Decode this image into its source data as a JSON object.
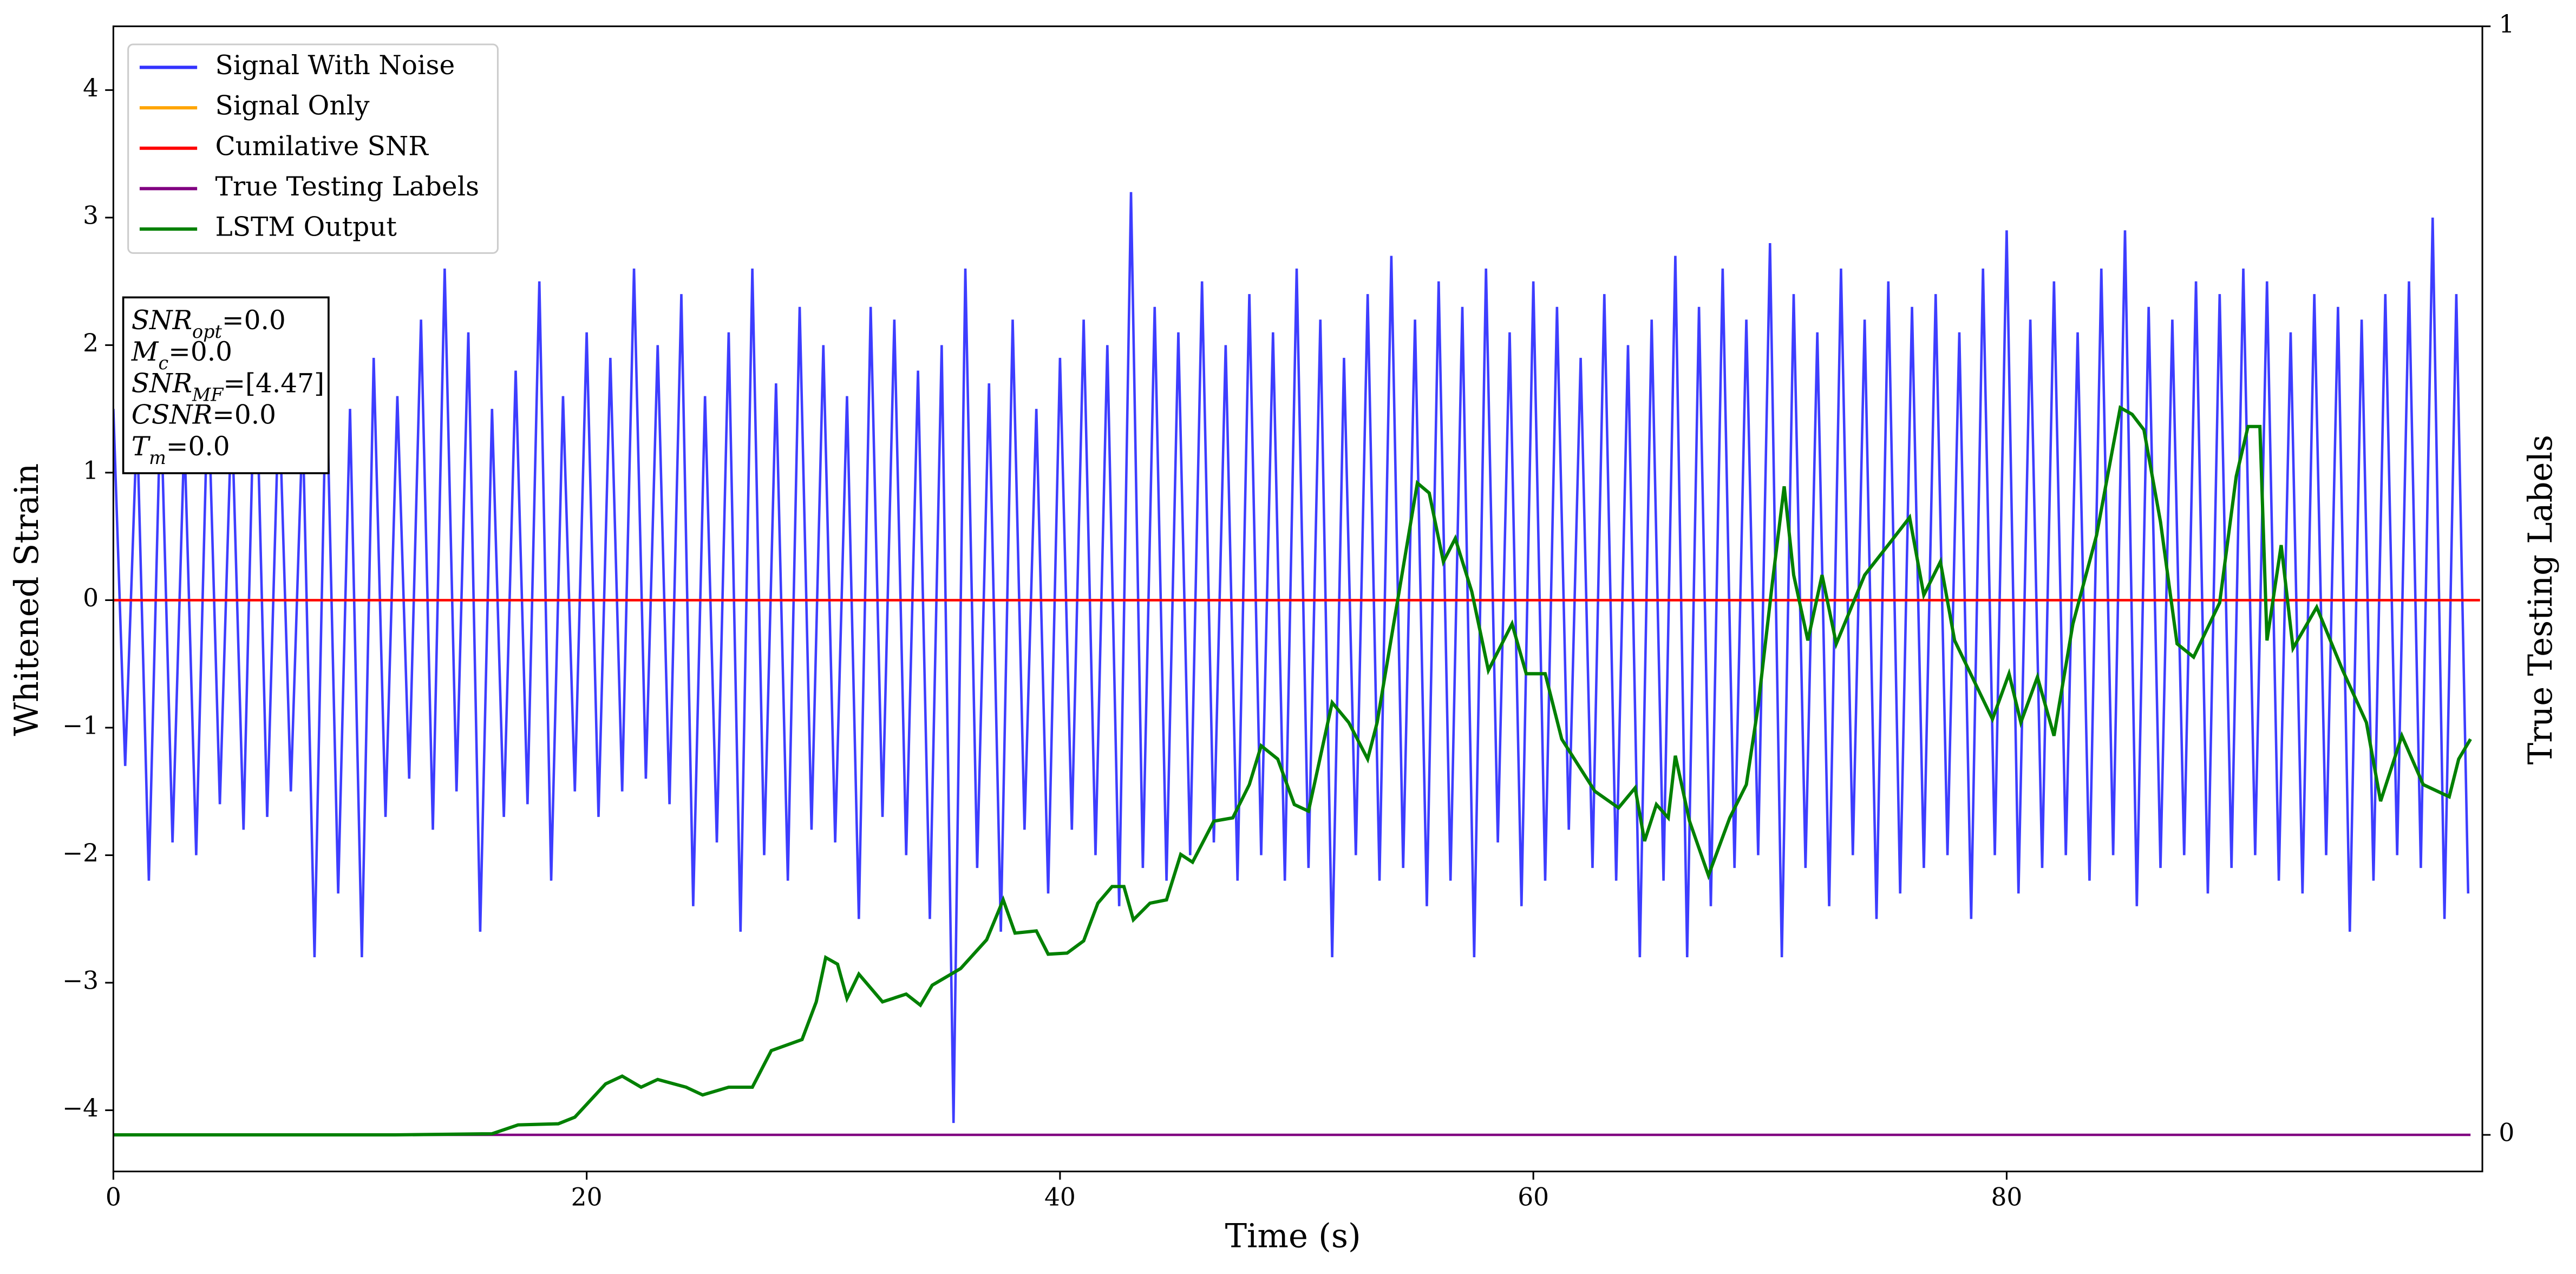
{
  "chart_data": {
    "type": "line",
    "xlabel": "Time (s)",
    "ylabel": "Whitened Strain",
    "y2label": "True Testing Labels",
    "xlim": [
      0,
      100.1
    ],
    "ylim": [
      -4.48,
      4.5
    ],
    "y2lim": [
      -0.033,
      1
    ],
    "xticks": [
      0,
      20,
      40,
      60,
      80
    ],
    "yticks": [
      {
        "value": -4,
        "label": "−4"
      },
      {
        "value": -3,
        "label": "−3"
      },
      {
        "value": -2,
        "label": "−2"
      },
      {
        "value": -1,
        "label": "−1"
      },
      0,
      1,
      2,
      3,
      4
    ],
    "y2ticks": [
      0,
      1
    ],
    "grid": false,
    "legend": "upper left",
    "series": [
      {
        "name": "Signal With Noise",
        "color": "#3333ff",
        "axis": "y",
        "x": [
          0,
          0.5,
          1,
          1.5,
          2,
          2.5,
          3,
          3.5,
          4,
          4.5,
          5,
          5.5,
          6,
          6.5,
          7,
          7.5,
          8,
          8.5,
          9,
          9.5,
          10,
          10.5,
          11,
          11.5,
          12,
          12.5,
          13,
          13.5,
          14,
          14.5,
          15,
          15.5,
          16,
          16.5,
          17,
          17.5,
          18,
          18.5,
          19,
          19.5,
          20,
          20.5,
          21,
          21.5,
          22,
          22.5,
          23,
          23.5,
          24,
          24.5,
          25,
          25.5,
          26,
          26.5,
          27,
          27.5,
          28,
          28.5,
          29,
          29.5,
          30,
          30.5,
          31,
          31.5,
          32,
          32.5,
          33,
          33.5,
          34,
          34.5,
          35,
          35.5,
          36,
          36.5,
          37,
          37.5,
          38,
          38.5,
          39,
          39.5,
          40,
          40.5,
          41,
          41.5,
          42,
          42.5,
          43,
          43.5,
          44,
          44.5,
          45,
          45.5,
          46,
          46.5,
          47,
          47.5,
          48,
          48.5,
          49,
          49.5,
          50,
          50.5,
          51,
          51.5,
          52,
          52.5,
          53,
          53.5,
          54,
          54.5,
          55,
          55.5,
          56,
          56.5,
          57,
          57.5,
          58,
          58.5,
          59,
          59.5,
          60,
          60.5,
          61,
          61.5,
          62,
          62.5,
          63,
          63.5,
          64,
          64.5,
          65,
          65.5,
          66,
          66.5,
          67,
          67.5,
          68,
          68.5,
          69,
          69.5,
          70,
          70.5,
          71,
          71.5,
          72,
          72.5,
          73,
          73.5,
          74,
          74.5,
          75,
          75.5,
          76,
          76.5,
          77,
          77.5,
          78,
          78.5,
          79,
          79.5,
          80,
          80.5,
          81,
          81.5,
          82,
          82.5,
          83,
          83.5,
          84,
          84.5,
          85,
          85.5,
          86,
          86.5,
          87,
          87.5,
          88,
          88.5,
          89,
          89.5,
          90,
          90.5,
          91,
          91.5,
          92,
          92.5,
          93,
          93.5,
          94,
          94.5,
          95,
          95.5,
          96,
          96.5,
          97,
          97.5,
          98,
          98.5,
          99,
          99.5
        ],
        "values": [
          1.5,
          -1.3,
          1.4,
          -2.2,
          1.6,
          -1.9,
          1.3,
          -2.0,
          1.7,
          -1.6,
          1.5,
          -1.8,
          2.1,
          -1.7,
          1.6,
          -1.5,
          1.4,
          -2.8,
          1.8,
          -2.3,
          1.5,
          -2.8,
          1.9,
          -1.7,
          1.6,
          -1.4,
          2.2,
          -1.8,
          2.6,
          -1.5,
          2.1,
          -2.6,
          1.5,
          -1.7,
          1.8,
          -1.6,
          2.5,
          -2.2,
          1.6,
          -1.5,
          2.1,
          -1.7,
          1.9,
          -1.5,
          2.6,
          -1.4,
          2.0,
          -1.6,
          2.4,
          -2.4,
          1.6,
          -1.9,
          2.1,
          -2.6,
          2.6,
          -2.0,
          1.7,
          -2.2,
          2.3,
          -1.8,
          2.0,
          -1.9,
          1.6,
          -2.5,
          2.3,
          -1.7,
          2.2,
          -2.0,
          1.8,
          -2.5,
          2.0,
          -4.1,
          2.6,
          -2.1,
          1.7,
          -2.6,
          2.2,
          -1.8,
          1.5,
          -2.3,
          1.9,
          -1.8,
          2.2,
          -2.0,
          2.0,
          -2.4,
          3.2,
          -2.1,
          2.3,
          -2.2,
          2.1,
          -2.0,
          2.5,
          -1.9,
          2.0,
          -2.2,
          2.4,
          -2.0,
          2.1,
          -2.2,
          2.6,
          -2.1,
          2.2,
          -2.8,
          1.9,
          -2.0,
          2.4,
          -2.2,
          2.7,
          -2.1,
          2.2,
          -2.4,
          2.5,
          -2.2,
          2.3,
          -2.8,
          2.6,
          -1.9,
          2.1,
          -2.4,
          2.5,
          -2.2,
          2.3,
          -1.8,
          1.9,
          -2.1,
          2.4,
          -2.2,
          2.0,
          -2.8,
          2.2,
          -2.2,
          2.7,
          -2.8,
          2.3,
          -2.4,
          2.6,
          -2.1,
          2.2,
          -2.0,
          2.8,
          -2.8,
          2.4,
          -2.1,
          2.1,
          -2.4,
          2.6,
          -2.0,
          2.2,
          -2.5,
          2.5,
          -2.3,
          2.3,
          -2.1,
          2.4,
          -2.0,
          2.1,
          -2.5,
          2.6,
          -2.0,
          2.9,
          -2.3,
          2.2,
          -2.1,
          2.5,
          -2.0,
          2.1,
          -2.2,
          2.6,
          -2.0,
          2.9,
          -2.4,
          2.3,
          -2.1,
          2.2,
          -2.0,
          2.5,
          -2.3,
          2.4,
          -2.1,
          2.6,
          -2.0,
          2.5,
          -2.2,
          2.1,
          -2.3,
          2.4,
          -2.0,
          2.3,
          -2.6,
          2.2,
          -2.2,
          2.4,
          -2.0,
          2.5,
          -2.1,
          3.0,
          -2.5,
          2.4,
          -2.3
        ]
      },
      {
        "name": "Signal Only",
        "color": "#ffa500",
        "axis": "y",
        "x": [
          0,
          100
        ],
        "values": [
          0,
          0
        ]
      },
      {
        "name": "Cumilative SNR",
        "color": "#ff0000",
        "axis": "y",
        "x": [
          0,
          100
        ],
        "values": [
          0,
          0
        ]
      },
      {
        "name": "True Testing Labels",
        "color": "#800080",
        "axis": "y2",
        "x": [
          0,
          99.6
        ],
        "values": [
          0,
          0
        ]
      },
      {
        "name": "LSTM Output",
        "color": "#008000",
        "axis": "y2",
        "x": [
          0,
          11.9,
          16.0,
          17.1,
          18.8,
          19.5,
          20.8,
          21.5,
          22.3,
          23.0,
          24.2,
          24.9,
          26.0,
          27.0,
          27.8,
          29.1,
          29.7,
          30.1,
          30.6,
          31.0,
          31.5,
          32.5,
          33.5,
          34.1,
          34.6,
          35.8,
          36.9,
          37.6,
          38.1,
          39.0,
          39.5,
          40.3,
          41.0,
          41.6,
          42.2,
          42.7,
          43.1,
          43.8,
          44.5,
          45.1,
          45.6,
          46.5,
          47.3,
          48.0,
          48.5,
          49.2,
          49.9,
          50.5,
          51.5,
          52.2,
          53.0,
          53.4,
          54.1,
          55.1,
          55.6,
          56.2,
          56.7,
          57.4,
          58.1,
          59.1,
          59.7,
          60.5,
          61.2,
          62.6,
          63.6,
          64.3,
          64.7,
          65.2,
          65.7,
          66.0,
          66.6,
          67.4,
          68.3,
          69.0,
          69.5,
          70.1,
          70.6,
          71.0,
          71.6,
          72.2,
          72.8,
          74.0,
          75.1,
          75.9,
          76.5,
          77.2,
          77.8,
          79.4,
          80.1,
          80.6,
          81.3,
          82.0,
          82.8,
          83.8,
          84.8,
          85.3,
          85.8,
          86.5,
          87.2,
          87.9,
          89.0,
          89.7,
          90.2,
          90.7,
          91.0,
          91.6,
          92.1,
          93.1,
          94.2,
          95.2,
          95.8,
          96.7,
          97.6,
          98.7,
          99.1,
          99.6
        ],
        "values": [
          0,
          0,
          0.001,
          0.009,
          0.01,
          0.016,
          0.046,
          0.053,
          0.043,
          0.05,
          0.043,
          0.036,
          0.043,
          0.043,
          0.076,
          0.086,
          0.12,
          0.16,
          0.154,
          0.123,
          0.145,
          0.12,
          0.127,
          0.117,
          0.135,
          0.15,
          0.176,
          0.212,
          0.182,
          0.184,
          0.163,
          0.164,
          0.175,
          0.209,
          0.224,
          0.224,
          0.194,
          0.209,
          0.212,
          0.253,
          0.246,
          0.283,
          0.286,
          0.316,
          0.351,
          0.339,
          0.298,
          0.292,
          0.39,
          0.372,
          0.339,
          0.372,
          0.461,
          0.588,
          0.579,
          0.517,
          0.538,
          0.49,
          0.419,
          0.461,
          0.416,
          0.416,
          0.357,
          0.31,
          0.295,
          0.313,
          0.265,
          0.298,
          0.286,
          0.342,
          0.283,
          0.234,
          0.286,
          0.316,
          0.387,
          0.498,
          0.585,
          0.505,
          0.446,
          0.505,
          0.443,
          0.505,
          0.535,
          0.557,
          0.487,
          0.517,
          0.446,
          0.375,
          0.416,
          0.372,
          0.413,
          0.36,
          0.461,
          0.541,
          0.656,
          0.65,
          0.636,
          0.553,
          0.443,
          0.431,
          0.48,
          0.594,
          0.639,
          0.639,
          0.446,
          0.532,
          0.439,
          0.476,
          0.419,
          0.372,
          0.301,
          0.36,
          0.316,
          0.305,
          0.339,
          0.357
        ]
      }
    ],
    "annotations": [
      {
        "symbol": "SNR",
        "sub": "opt",
        "text": "=0.0"
      },
      {
        "symbol": "M",
        "sub": "c",
        "text": "=0.0"
      },
      {
        "symbol": "SNR",
        "sub": "MF",
        "text": "=[4.47]"
      },
      {
        "symbol": "CSNR",
        "text": "=0.0"
      },
      {
        "symbol": "T",
        "sub": "m",
        "text": "=0.0"
      }
    ]
  }
}
